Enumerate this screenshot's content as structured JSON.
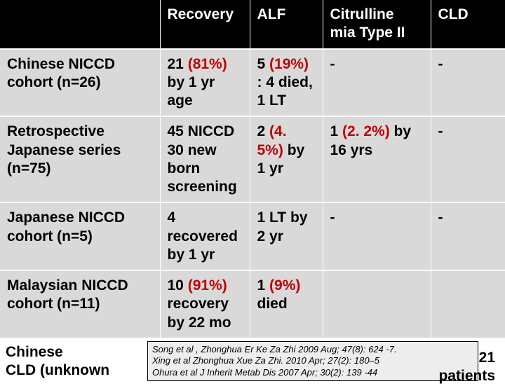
{
  "table": {
    "header": {
      "c0": "",
      "c1": "Recovery",
      "c2": "ALF",
      "c3": "Citrulline mia Type II",
      "c4": "CLD"
    },
    "rows": [
      {
        "study": "Chinese NICCD cohort (n=26)",
        "recovery_a": "21 ",
        "recovery_pct": "(81%)",
        "recovery_b": " by 1 yr age",
        "alf_a": "5 ",
        "alf_pct": "(19%)",
        "alf_b": " : 4 died, 1 LT",
        "cit": "-",
        "cld": "-"
      },
      {
        "study": "Retrospective Japanese series (n=75)",
        "recovery_a": "45 NICCD 30 new born screening",
        "recovery_pct": "",
        "recovery_b": "",
        "alf_a": "2 ",
        "alf_pct": "(4. 5%)",
        "alf_b": " by 1 yr",
        "cit_a": "1 ",
        "cit_pct": "(2. 2%)",
        "cit_b": " by 16 yrs",
        "cld": "-"
      },
      {
        "study": "Japanese NICCD cohort (n=5)",
        "recovery_a": "4 recovered by 1 yr",
        "recovery_pct": "",
        "recovery_b": "",
        "alf_a": "1 LT by 2 yr",
        "alf_pct": "",
        "alf_b": "",
        "cit": "-",
        "cld": "-"
      },
      {
        "study": "Malaysian NICCD cohort (n=11)",
        "recovery_a": "10 ",
        "recovery_pct": "(91%)",
        "recovery_b": " recovery by 22 mo",
        "alf_a": "1 ",
        "alf_pct": "(9%)",
        "alf_b": " died",
        "cit": "",
        "cld": ""
      }
    ]
  },
  "footer": {
    "l1": "Song et al , Zhonghua Er Ke Za Zhi 2009 Aug; 47(8): 624 -7.",
    "l2": "Xing  et al Zhonghua Xue Za Zhi. 2010 Apr; 27(2): 180–5",
    "l3": "Ohura et al J Inherit Metab Dis 2007 Apr; 30(2): 139 -44"
  },
  "bottom_left": {
    "l1": "Chinese",
    "l2": "CLD (unknown"
  },
  "bottom_right": {
    "l1": "21",
    "l2": "patients"
  }
}
